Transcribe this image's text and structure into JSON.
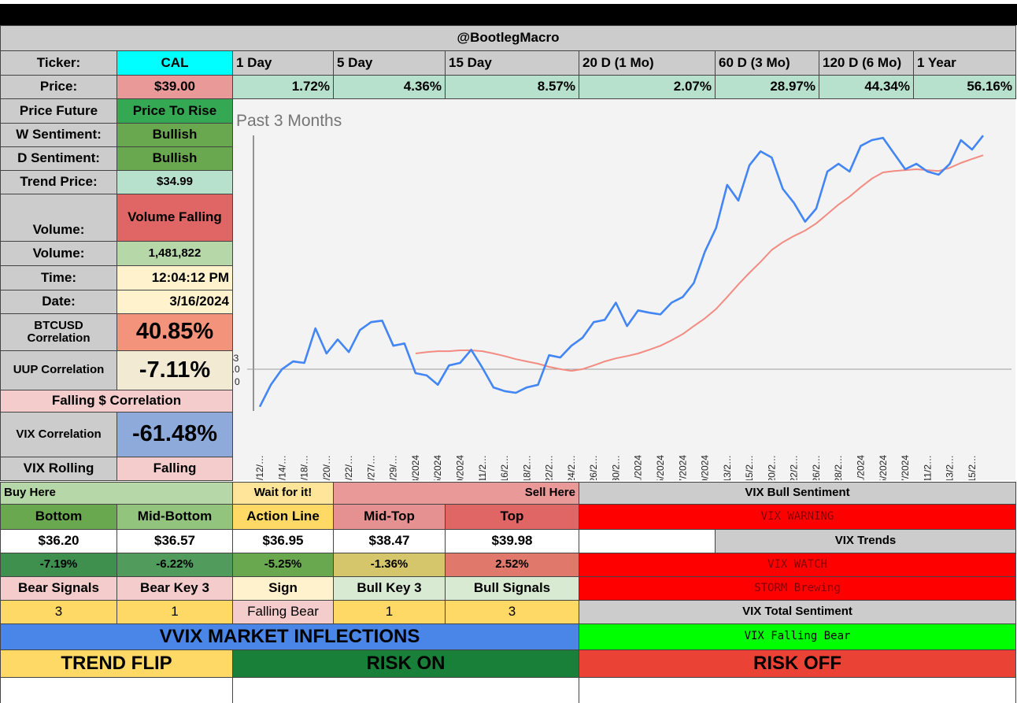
{
  "header": "@BootlegMacro",
  "ticker": {
    "label": "Ticker:",
    "value": "CAL"
  },
  "periods": [
    "1 Day",
    "5 Day",
    "15 Day",
    "20 D (1 Mo)",
    "60 D (3 Mo)",
    "120 D (6 Mo)",
    "1 Year"
  ],
  "price": {
    "label": "Price:",
    "value": "$39.00"
  },
  "returns": [
    "1.72%",
    "4.36%",
    "8.57%",
    "2.07%",
    "28.97%",
    "44.34%",
    "56.16%"
  ],
  "indicators": [
    {
      "label": "Price Future",
      "value": "Price To Rise"
    },
    {
      "label": "W Sentiment:",
      "value": "Bullish"
    },
    {
      "label": "D Sentiment:",
      "value": "Bullish"
    },
    {
      "label": "Trend Price:",
      "value": "$34.99"
    },
    {
      "label": "Volume:",
      "value": "Volume Falling"
    },
    {
      "label": "Volume:",
      "value": "1,481,822"
    },
    {
      "label": "Time:",
      "value": "12:04:12 PM"
    },
    {
      "label": "Date:",
      "value": "3/16/2024"
    },
    {
      "label": "BTCUSD Correlation",
      "value": "40.85%"
    },
    {
      "label": "UUP Correlation",
      "value": "-7.11%"
    }
  ],
  "dollar_note": "Falling $ Correlation",
  "vix_indicators": [
    {
      "label": "VIX Correlation",
      "value": "-61.48%"
    },
    {
      "label": "VIX Rolling",
      "value": "Falling"
    }
  ],
  "levels": {
    "buy_here": "Buy Here",
    "wait": "Wait for it!",
    "sell_here": "Sell Here",
    "names": [
      "Bottom",
      "Mid-Bottom",
      "Action Line",
      "Mid-Top",
      "Top"
    ],
    "prices": [
      "$36.20",
      "$36.57",
      "$36.95",
      "$38.47",
      "$39.98"
    ],
    "changes": [
      "-7.19%",
      "-6.22%",
      "-5.25%",
      "-1.36%",
      "2.52%"
    ]
  },
  "signals": {
    "names": [
      "Bear Signals",
      "Bear Key 3",
      "Sign",
      "Bull Key 3",
      "Bull Signals"
    ],
    "counts": [
      3,
      1,
      "Falling Bear",
      1,
      3
    ]
  },
  "vix": {
    "title": "VIX Bull Sentiment",
    "warning": "VIX WARNING",
    "trends": "VIX Trends",
    "watch": "VIX WATCH",
    "storm": "STORM Brewing",
    "total_title": "VIX Total Sentiment",
    "total": "VIX Falling Bear"
  },
  "vvix": {
    "title": "VVIX MARKET INFLECTIONS",
    "trend_flip": "TREND FLIP",
    "risk_on": "RISK ON",
    "risk_off": "RISK OFF"
  },
  "chart_data": {
    "type": "line",
    "title": "Past 3 Months",
    "categories": [
      "12/12/…",
      null,
      "12/14/…",
      null,
      "12/18/…",
      null,
      "12/20/…",
      null,
      "12/22/…",
      null,
      "12/27/…",
      null,
      "12/29/…",
      null,
      "1/3/2024",
      null,
      "1/5/2024",
      null,
      "1/9/2024",
      null,
      "1/11/2…",
      null,
      "1/16/2…",
      null,
      "1/18/2…",
      null,
      "1/22/2…",
      null,
      "1/24/2…",
      null,
      "1/26/2…",
      null,
      "1/30/2…",
      null,
      "2/1/2024",
      null,
      "2/5/2024",
      null,
      "2/7/2024",
      null,
      "2/9/2024",
      null,
      "2/13/2…",
      null,
      "2/15/2…",
      null,
      "2/20/2…",
      null,
      "2/22/2…",
      null,
      "2/26/2…",
      null,
      "2/28/2…",
      null,
      "3/1/2024",
      null,
      "3/5/2024",
      null,
      "3/7/2024",
      null,
      "3/11/2…",
      null,
      "3/13/2…",
      null,
      "3/15/2…",
      null
    ],
    "series": [
      {
        "color": "#4285f4",
        "values": [
          29.49,
          30.26,
          30.81,
          31.08,
          31.03,
          32.24,
          31.36,
          31.85,
          31.41,
          32.18,
          32.46,
          32.51,
          31.63,
          31.71,
          30.67,
          30.59,
          30.26,
          30.94,
          31.03,
          31.49,
          30.86,
          30.17,
          30.04,
          29.98,
          30.17,
          30.26,
          31.3,
          31.22,
          31.63,
          31.91,
          32.46,
          32.54,
          33.14,
          32.32,
          32.87,
          32.79,
          32.73,
          33.14,
          33.34,
          33.83,
          34.93,
          35.76,
          37.27,
          36.72,
          37.96,
          38.45,
          38.23,
          37.13,
          36.64,
          35.98,
          36.44,
          37.74,
          38.01,
          37.74,
          38.64,
          38.84,
          38.92,
          38.37,
          37.82,
          38.01,
          37.74,
          37.63,
          38.01,
          38.84,
          38.51,
          39.0
        ]
      },
      {
        "color": "#f28b82",
        "values": [
          null,
          null,
          null,
          null,
          null,
          null,
          null,
          null,
          null,
          null,
          null,
          null,
          null,
          null,
          31.36,
          31.41,
          31.44,
          31.44,
          31.47,
          31.47,
          31.44,
          31.36,
          31.27,
          31.16,
          31.08,
          31.0,
          30.89,
          30.81,
          30.75,
          30.81,
          30.94,
          31.08,
          31.19,
          31.27,
          31.36,
          31.49,
          31.63,
          31.82,
          32.04,
          32.32,
          32.59,
          32.92,
          33.34,
          33.78,
          34.19,
          34.57,
          34.99,
          35.26,
          35.48,
          35.67,
          35.92,
          36.25,
          36.58,
          36.86,
          37.19,
          37.49,
          37.71,
          37.76,
          37.79,
          37.82,
          37.79,
          37.76,
          37.87,
          38.04,
          38.18,
          38.31
        ]
      }
    ],
    "ylim": [
      29.4,
      39.2
    ],
    "y_axis_fragments": [
      "$3",
      "0.0",
      "0"
    ]
  }
}
